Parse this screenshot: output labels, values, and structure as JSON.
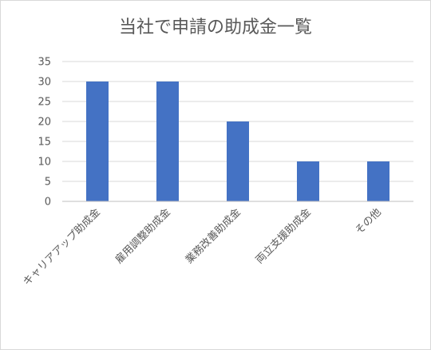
{
  "chart_data": {
    "type": "bar",
    "title": "当社で申請の助成金一覧",
    "categories": [
      "キャリアアップ助成金",
      "雇用調整助成金",
      "業務改善助成金",
      "両立支援助成金",
      "その他"
    ],
    "values": [
      30,
      30,
      20,
      10,
      10
    ],
    "xlabel": "",
    "ylabel": "",
    "ylim": [
      0,
      35
    ],
    "yticks": [
      0,
      5,
      10,
      15,
      20,
      25,
      30,
      35
    ],
    "grid": true,
    "legend": "none",
    "bar_color": "#4472c4",
    "grid_color": "#d9d9d9"
  }
}
